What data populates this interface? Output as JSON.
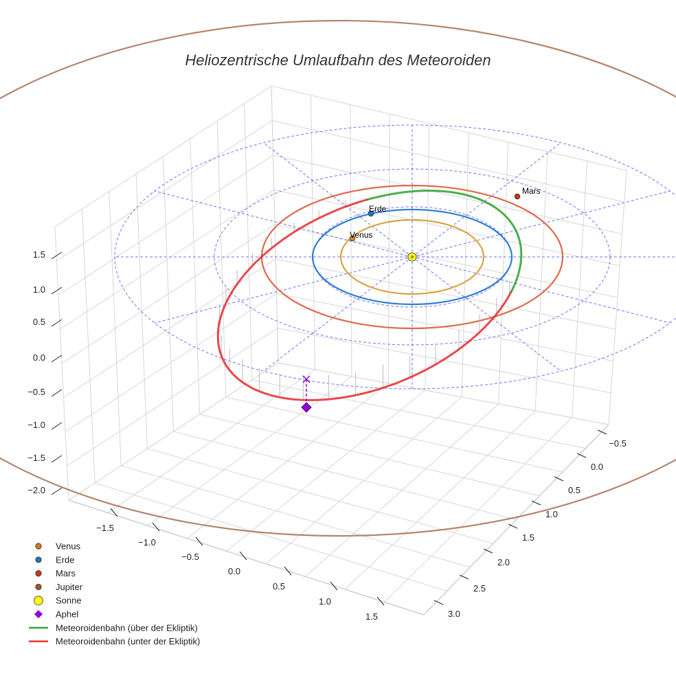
{
  "chart_data": {
    "type": "line3d",
    "title": "Heliozentrische Umlaufbahn des Meteoroiden",
    "axes": {
      "x": {
        "label": "",
        "ticks": [
          "−1.5",
          "−1.0",
          "−0.5",
          "0.0",
          "0.5",
          "1.0",
          "1.5"
        ],
        "range": [
          -1.9,
          1.9
        ]
      },
      "y": {
        "label": "",
        "ticks": [
          "−0.5",
          "0.0",
          "0.5",
          "1.0",
          "1.5",
          "2.0",
          "2.5",
          "3.0"
        ],
        "range": [
          -0.8,
          3.2
        ]
      },
      "z": {
        "label": "",
        "ticks": [
          "1.5",
          "1.0",
          "0.5",
          "0.0",
          "−0.5",
          "−1.0",
          "−1.5",
          "−2.0"
        ],
        "range": [
          -2.2,
          1.7
        ]
      }
    },
    "planets": [
      {
        "name": "Venus",
        "label": "Venus",
        "a": 0.72,
        "color": "#cc8a1e"
      },
      {
        "name": "Erde",
        "label": "Erde",
        "a": 1.0,
        "color": "#1f77b4"
      },
      {
        "name": "Mars",
        "label": "Mars",
        "a": 1.52,
        "color": "#c0391b"
      }
    ],
    "sun": {
      "name": "Sonne",
      "color": "#ffff00"
    },
    "meteoroid_orbit": {
      "perihelion_au": 0.98,
      "aphelion_au": 2.68,
      "inclination_deg": 25
    },
    "aphel": {
      "name": "Aphel",
      "color": "#9400d3"
    },
    "legend": [
      {
        "label": "Venus",
        "kind": "dot",
        "color": "#cc7a1e"
      },
      {
        "label": "Erde",
        "kind": "dot",
        "color": "#1f77b4"
      },
      {
        "label": "Mars",
        "kind": "dot",
        "color": "#c0391b"
      },
      {
        "label": "Jupiter",
        "kind": "dot",
        "color": "#a0522d"
      },
      {
        "label": "Sonne",
        "kind": "bigdot",
        "color": "#ffff00"
      },
      {
        "label": "Aphel",
        "kind": "diamond",
        "color": "#9400d3"
      },
      {
        "label": "Meteoroidenbahn (über der Ekliptik)",
        "kind": "line",
        "color": "#2ca02c"
      },
      {
        "label": "Meteoroidenbahn (unter der Ekliptik)",
        "kind": "line",
        "color": "#e8282b"
      }
    ],
    "colors": {
      "grid_ring": "#3333ff",
      "jupiter_orbit": "#b5846b",
      "background": "#ffffff"
    }
  }
}
